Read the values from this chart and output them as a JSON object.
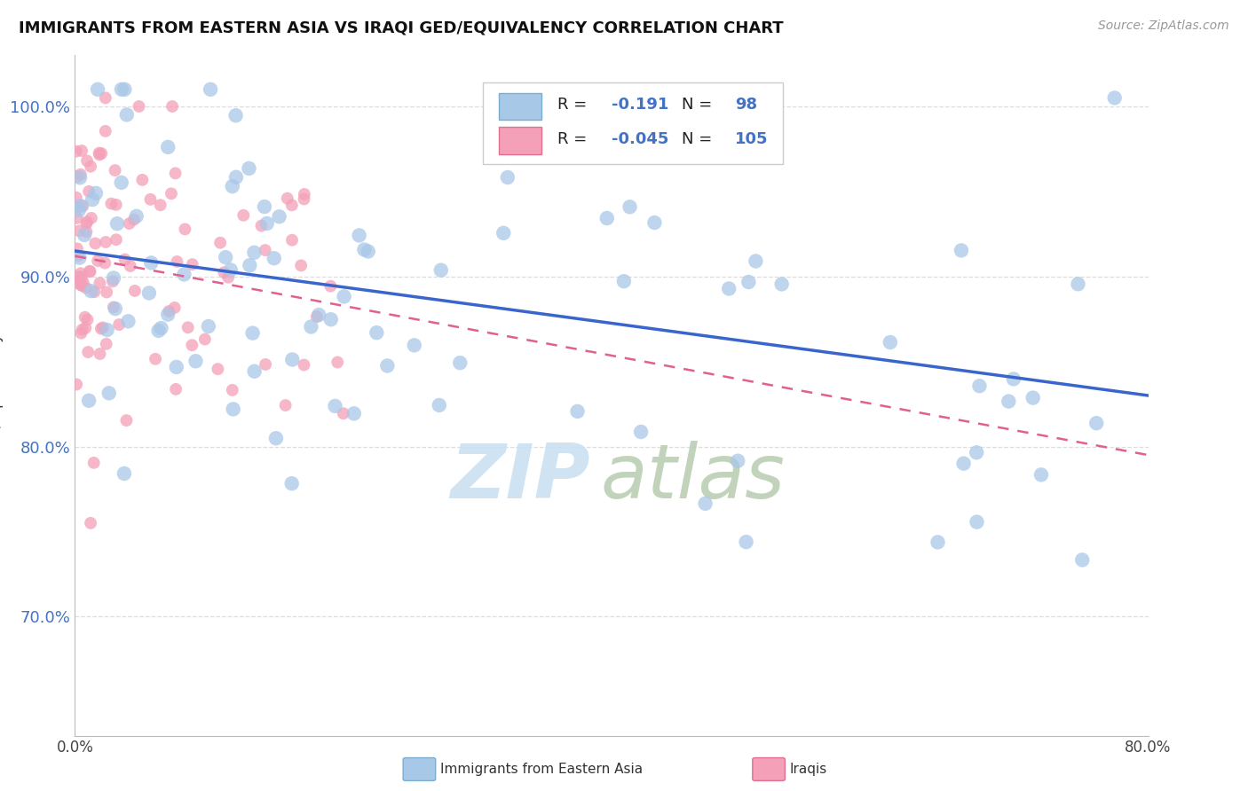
{
  "title": "IMMIGRANTS FROM EASTERN ASIA VS IRAQI GED/EQUIVALENCY CORRELATION CHART",
  "source": "Source: ZipAtlas.com",
  "ylabel": "GED/Equivalency",
  "xlim": [
    0.0,
    80.0
  ],
  "ylim": [
    63.0,
    103.0
  ],
  "yticks": [
    70.0,
    80.0,
    90.0,
    100.0
  ],
  "xticks": [
    0.0,
    80.0
  ],
  "xtick_labels": [
    "0.0%",
    "80.0%"
  ],
  "legend_r_blue": "-0.191",
  "legend_n_blue": "98",
  "legend_r_pink": "-0.045",
  "legend_n_pink": "105",
  "blue_color": "#a8c8e8",
  "pink_color": "#f4a0b8",
  "blue_line_color": "#3a66cc",
  "pink_line_color": "#e06090",
  "blue_line_y0": 91.5,
  "blue_line_y1": 83.0,
  "pink_line_y0": 91.2,
  "pink_line_y1": 79.5,
  "blue_dot_size": 140,
  "pink_dot_size": 100,
  "watermark_zip_color": "#c8dff0",
  "watermark_atlas_color": "#b8ccb0",
  "grid_color": "#dddddd",
  "ytick_color": "#4472c4",
  "title_fontsize": 13,
  "legend_fontsize": 13
}
